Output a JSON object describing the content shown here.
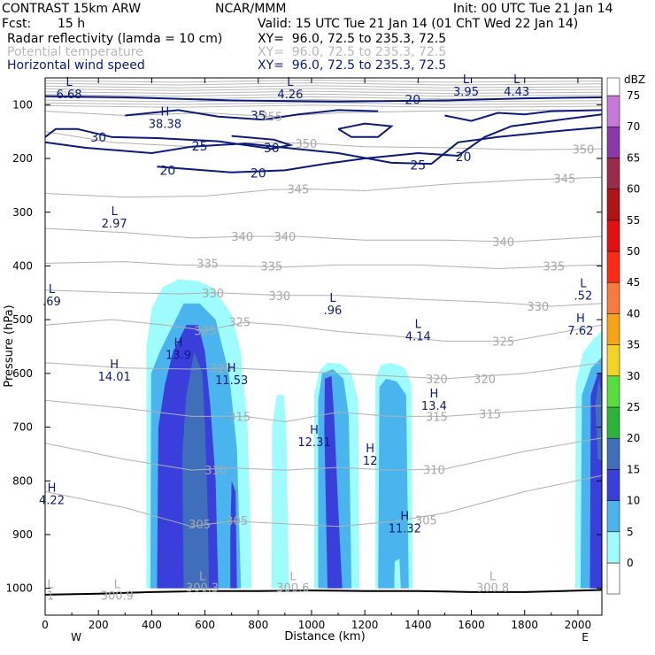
{
  "header": {
    "model": "CONTRAST 15km ARW",
    "source": "NCAR/MMM",
    "init": "Init: 00 UTC Tue 21 Jan 14",
    "fcst_label": "Fcst:",
    "fcst_value": "15 h",
    "valid": "Valid: 15 UTC Tue 21 Jan 14 (01 ChT Wed 22 Jan 14)",
    "fields": [
      {
        "name": "Radar reflectivity (lamda = 10 cm)",
        "xy": "XY=  96.0, 72.5 to 235.3, 72.5",
        "color": "#000000"
      },
      {
        "name": "Potential temperature",
        "xy": "XY=  96.0, 72.5 to 235.3, 72.5",
        "color": "#b4b4b4"
      },
      {
        "name": "Horizontal wind speed",
        "xy": "XY=  96.0, 72.5 to 235.3, 72.5",
        "color": "#0c1a7a"
      }
    ]
  },
  "chart_data": {
    "type": "cross-section contour",
    "xlabel": "Distance (km)",
    "ylabel": "Pressure (hPa)",
    "xlim": [
      0,
      2090
    ],
    "ylim": [
      1050,
      50
    ],
    "x_ticks": [
      0,
      200,
      400,
      600,
      800,
      1000,
      1200,
      1400,
      1600,
      1800,
      2000
    ],
    "y_ticks": [
      100,
      200,
      300,
      400,
      500,
      600,
      700,
      800,
      900,
      1000
    ],
    "x_end_labels": {
      "left": "W",
      "right": "E"
    },
    "colorbar": {
      "unit": "dBZ",
      "levels": [
        0,
        5,
        10,
        15,
        20,
        25,
        30,
        35,
        40,
        45,
        50,
        55,
        60,
        65,
        70,
        75
      ],
      "colors": [
        "#ffffff",
        "#9ffcfc",
        "#4ab4ee",
        "#3a3fdc",
        "#3f6fba",
        "#2ab53a",
        "#55de3c",
        "#f2d424",
        "#f7a414",
        "#f97a3a",
        "#fc2a12",
        "#e21010",
        "#b01414",
        "#9c2a4a",
        "#8a3aa8",
        "#c47ad6"
      ]
    },
    "wind_speed_contours": [
      {
        "value": 20,
        "label_x": [
          1380,
          1570,
          460,
          800
        ],
        "label_p": [
          90,
          197,
          222,
          227
        ]
      },
      {
        "value": 25,
        "label_x": [
          580,
          1400
        ],
        "label_p": [
          177,
          212
        ]
      },
      {
        "value": 30,
        "label_x": [
          200,
          850
        ],
        "label_p": [
          160,
          180
        ]
      },
      {
        "value": 35,
        "label_x": [
          800
        ],
        "label_p": [
          120
        ]
      }
    ],
    "theta_contours": [
      {
        "value": 300.9,
        "label_x": 270,
        "label_p": 1015
      },
      {
        "value": 300.3,
        "label_x": 590,
        "label_p": 1000
      },
      {
        "value": 300.6,
        "label_x": 930,
        "label_p": 1015
      },
      {
        "value": 300.8,
        "label_x": 1680,
        "label_p": 1015
      },
      {
        "value": 305,
        "label_x": [
          580,
          720,
          1430
        ],
        "label_p": [
          880,
          874,
          873
        ]
      },
      {
        "value": 310,
        "label_x": [
          640,
          1460
        ],
        "label_p": [
          780,
          779
        ]
      },
      {
        "value": 315,
        "label_x": [
          730,
          1470,
          1670
        ],
        "label_p": [
          680,
          680,
          675
        ]
      },
      {
        "value": 320,
        "label_x": [
          660,
          1470,
          1650
        ],
        "label_p": [
          590,
          610,
          610
        ]
      },
      {
        "value": 325,
        "label_x": [
          600,
          730,
          1720
        ],
        "label_p": [
          520,
          504,
          540
        ]
      },
      {
        "value": 330,
        "label_x": [
          630,
          880,
          1850
        ],
        "label_p": [
          450,
          455,
          475
        ]
      },
      {
        "value": 335,
        "label_x": [
          610,
          850,
          1910
        ],
        "label_p": [
          395,
          400,
          400
        ]
      },
      {
        "value": 340,
        "label_x": [
          740,
          900,
          1720
        ],
        "label_p": [
          345,
          345,
          355
        ]
      },
      {
        "value": 345,
        "label_x": [
          950,
          1950
        ],
        "label_p": [
          257,
          237
        ]
      },
      {
        "value": 350,
        "label_x": [
          980,
          2020
        ],
        "label_p": [
          172,
          183
        ]
      },
      {
        "value": 355,
        "label_x": [
          850
        ],
        "label_p": [
          122
        ]
      }
    ],
    "wind_extrema": [
      {
        "type": "L",
        "value": "6.68",
        "x": 90,
        "p": 65
      },
      {
        "type": "L",
        "value": "4.26",
        "x": 920,
        "p": 65
      },
      {
        "type": "L",
        "value": "3.95",
        "x": 1580,
        "p": 60
      },
      {
        "type": "L",
        "value": "4.43",
        "x": 1770,
        "p": 60
      },
      {
        "type": "H",
        "value": "38.38",
        "x": 450,
        "p": 120
      },
      {
        "type": "L",
        "value": "2.97",
        "x": 260,
        "p": 305
      },
      {
        "type": "L",
        "value": ".69",
        "x": 25,
        "p": 450
      },
      {
        "type": "L",
        "value": ".96",
        "x": 1080,
        "p": 467
      },
      {
        "type": "L",
        "value": "4.14",
        "x": 1400,
        "p": 515
      },
      {
        "type": "L",
        "value": ".52",
        "x": 2020,
        "p": 440
      },
      {
        "type": "H",
        "value": "7.62",
        "x": 2010,
        "p": 505
      },
      {
        "type": "H",
        "value": "13.9",
        "x": 500,
        "p": 550
      },
      {
        "type": "H",
        "value": "14.01",
        "x": 260,
        "p": 590
      },
      {
        "type": "H",
        "value": "11.53",
        "x": 700,
        "p": 597
      },
      {
        "type": "H",
        "value": "13.4",
        "x": 1460,
        "p": 645
      },
      {
        "type": "H",
        "value": "12.31",
        "x": 1010,
        "p": 712
      },
      {
        "type": "H",
        "value": "12",
        "x": 1220,
        "p": 747
      },
      {
        "type": "H",
        "value": "4.22",
        "x": 25,
        "p": 820
      },
      {
        "type": "H",
        "value": "11.32",
        "x": 1350,
        "p": 873
      }
    ],
    "theta_extrema": [
      {
        "type": "L",
        "value": "300.9",
        "x": 270,
        "p": 1000
      },
      {
        "type": "L",
        "value": "300.3",
        "x": 590,
        "p": 985
      },
      {
        "type": "L",
        "value": "300.6",
        "x": 930,
        "p": 985
      },
      {
        "type": "L",
        "value": "300.8",
        "x": 1680,
        "p": 985
      },
      {
        "type": "L",
        "value": "1",
        "x": 20,
        "p": 1000
      }
    ],
    "reflectivity_cells": [
      {
        "x": [
          380,
          780
        ],
        "top_p": 435,
        "max_dbz": 20
      },
      {
        "x": [
          840,
          950
        ],
        "top_p": 640,
        "max_dbz": 5
      },
      {
        "x": [
          1010,
          1180
        ],
        "top_p": 580,
        "max_dbz": 15
      },
      {
        "x": [
          1240,
          1380
        ],
        "top_p": 580,
        "max_dbz": 10
      },
      {
        "x": [
          1990,
          2090
        ],
        "top_p": 540,
        "max_dbz": 25
      }
    ]
  }
}
